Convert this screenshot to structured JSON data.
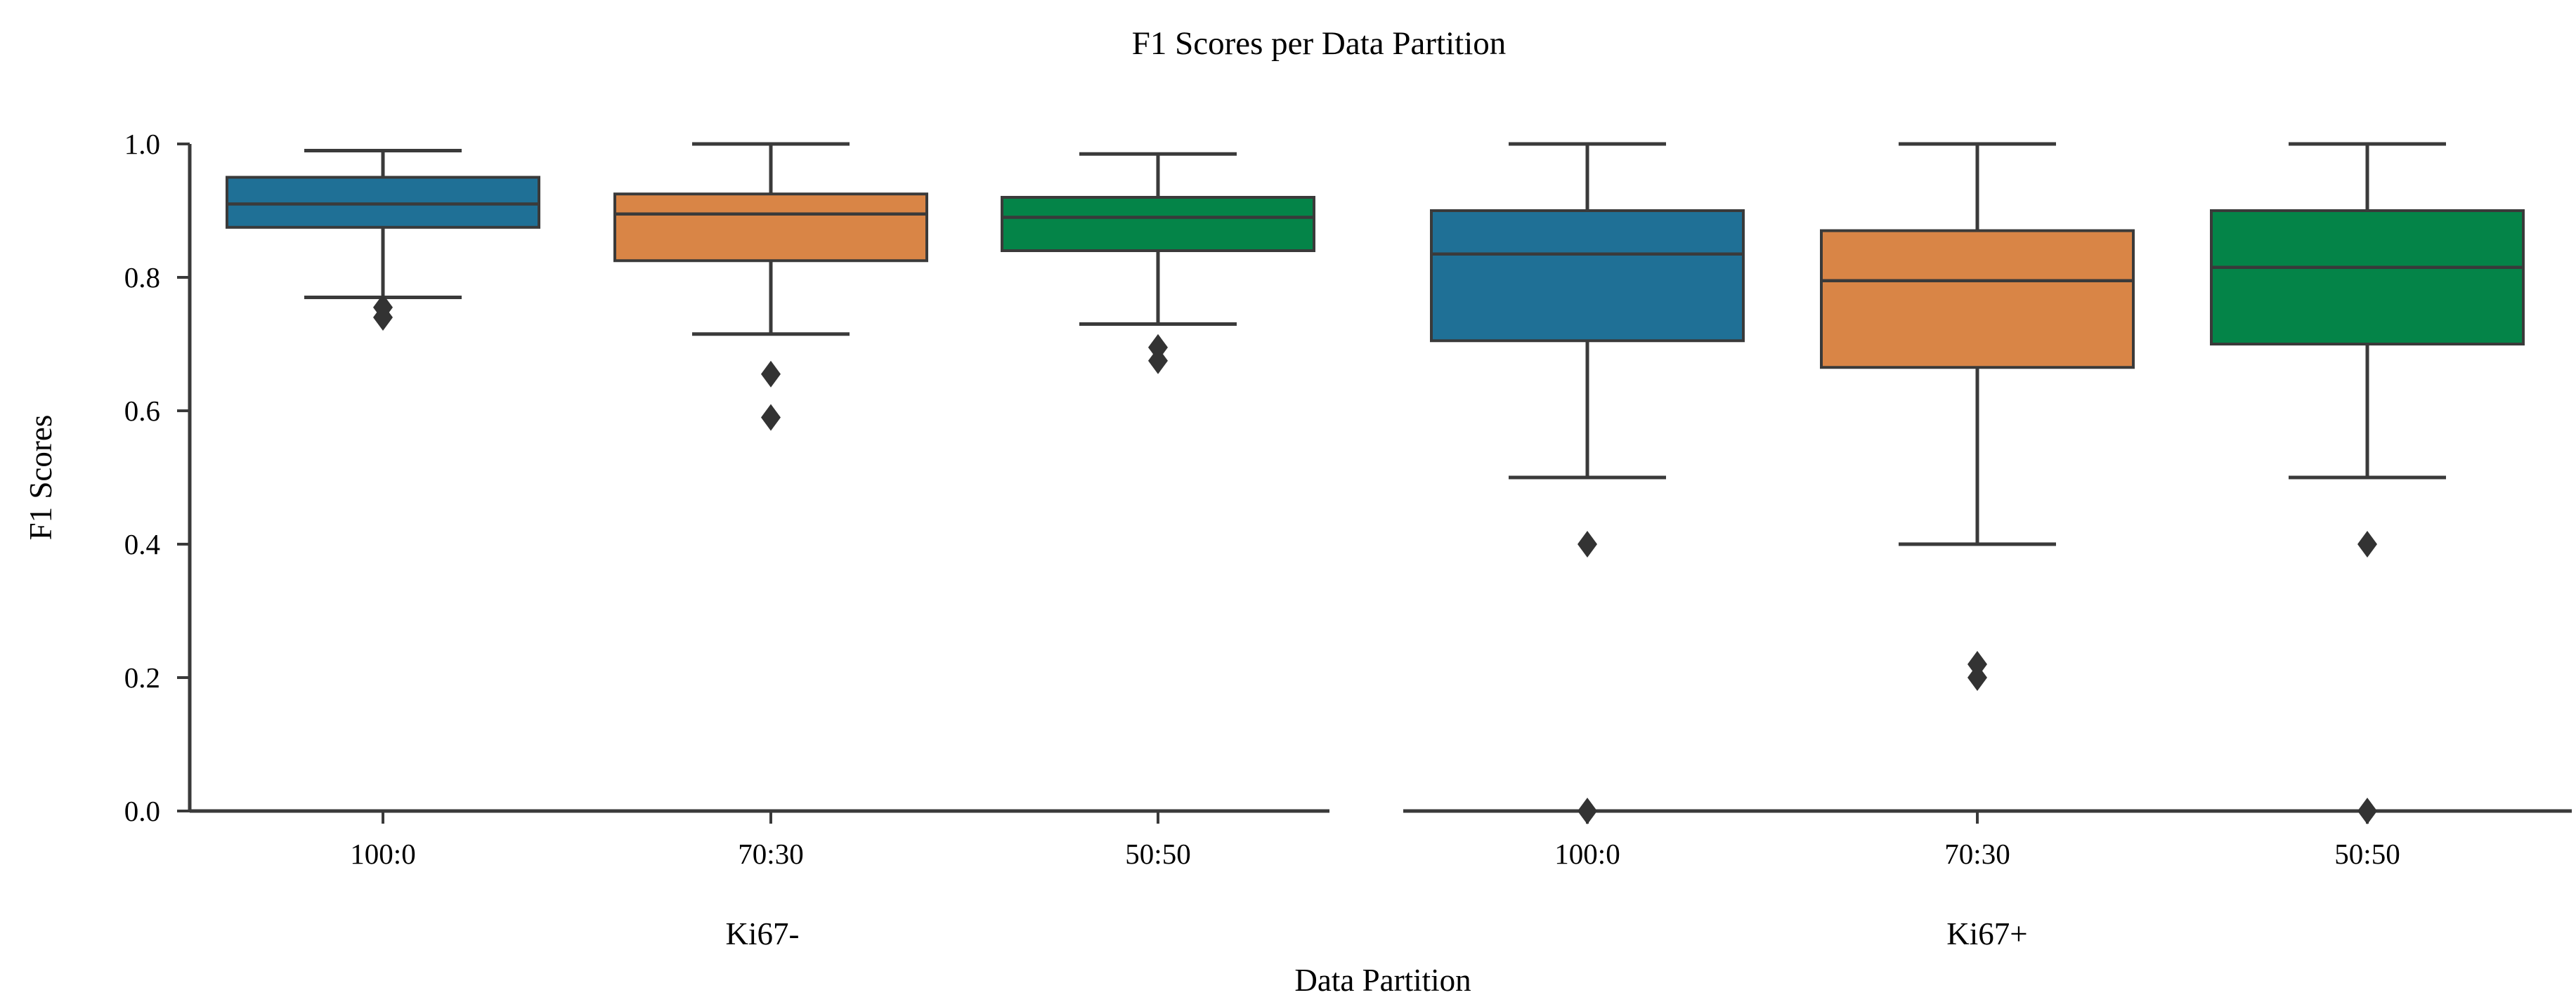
{
  "chart_data": {
    "type": "boxplot",
    "title": "F1 Scores per Data Partition",
    "xlabel": "Data Partition",
    "ylabel": "F1 Scores",
    "ylim": [
      0.0,
      1.0
    ],
    "yticks": [
      "0.0",
      "0.2",
      "0.4",
      "0.6",
      "0.8",
      "1.0"
    ],
    "grid": false,
    "legend": "none",
    "colors": {
      "blue": "#1f7096",
      "orange": "#d98546",
      "green": "#048448",
      "line": "#3a3a3a",
      "flier": "#333333"
    },
    "panels": [
      {
        "group_label": "Ki67-",
        "categories": [
          "100:0",
          "70:30",
          "50:50"
        ],
        "boxes": [
          {
            "category": "100:0",
            "color": "blue",
            "whislo": 0.77,
            "q1": 0.875,
            "med": 0.91,
            "q3": 0.95,
            "whishi": 0.99,
            "fliers": [
              0.755,
              0.74
            ]
          },
          {
            "category": "70:30",
            "color": "orange",
            "whislo": 0.715,
            "q1": 0.825,
            "med": 0.895,
            "q3": 0.925,
            "whishi": 1.0,
            "fliers": [
              0.655,
              0.59
            ]
          },
          {
            "category": "50:50",
            "color": "green",
            "whislo": 0.73,
            "q1": 0.84,
            "med": 0.89,
            "q3": 0.92,
            "whishi": 0.985,
            "fliers": [
              0.695,
              0.675
            ]
          }
        ]
      },
      {
        "group_label": "Ki67+",
        "categories": [
          "100:0",
          "70:30",
          "50:50"
        ],
        "boxes": [
          {
            "category": "100:0",
            "color": "blue",
            "whislo": 0.5,
            "q1": 0.705,
            "med": 0.835,
            "q3": 0.9,
            "whishi": 1.0,
            "fliers": [
              0.4,
              0.0
            ]
          },
          {
            "category": "70:30",
            "color": "orange",
            "whislo": 0.4,
            "q1": 0.665,
            "med": 0.795,
            "q3": 0.87,
            "whishi": 1.0,
            "fliers": [
              0.22,
              0.2
            ]
          },
          {
            "category": "50:50",
            "color": "green",
            "whislo": 0.5,
            "q1": 0.7,
            "med": 0.815,
            "q3": 0.9,
            "whishi": 1.0,
            "fliers": [
              0.4,
              0.0
            ]
          }
        ]
      }
    ]
  }
}
